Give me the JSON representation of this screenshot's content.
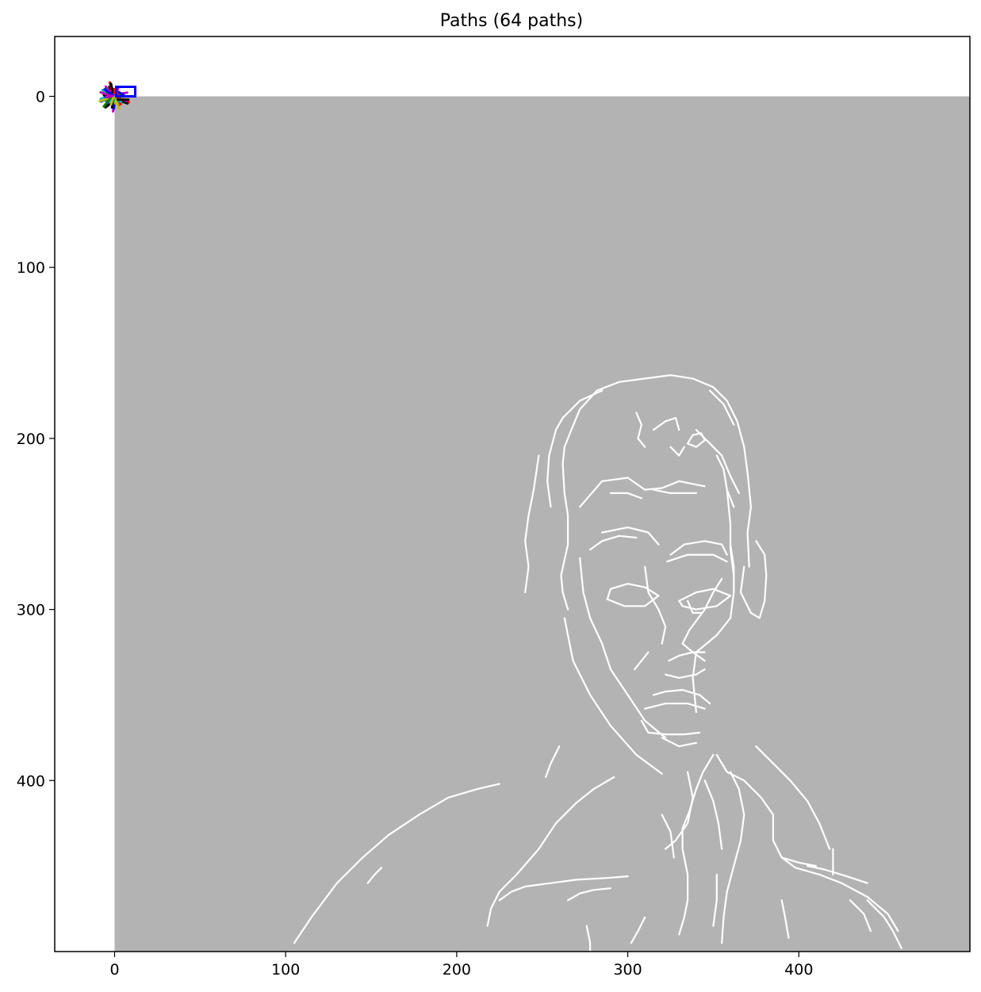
{
  "chart_data": {
    "type": "scatter",
    "title": "Paths (64 paths)",
    "xlabel": "",
    "ylabel": "",
    "xlim": [
      -35,
      500
    ],
    "ylim": [
      500,
      -35
    ],
    "x_ticks": [
      0,
      100,
      200,
      300,
      400
    ],
    "y_ticks": [
      0,
      100,
      200,
      300,
      400
    ],
    "grid": false,
    "image_extent": [
      0,
      500,
      0,
      500
    ],
    "background_color": "#b3b3b3",
    "edge_color": "#ffffff",
    "path_colors": [
      "#0000ff",
      "#00bfbf",
      "#008000",
      "#bfbf00",
      "#000000",
      "#bf00bf",
      "#ff0000"
    ],
    "path_count": 64,
    "path_cluster_center": [
      0,
      0
    ],
    "edge_polylines": [
      [
        [
          265,
          300
        ],
        [
          262,
          290
        ],
        [
          261,
          280
        ],
        [
          265,
          262
        ],
        [
          265,
          245
        ],
        [
          263,
          232
        ],
        [
          262,
          215
        ],
        [
          263,
          205
        ],
        [
          267,
          195
        ],
        [
          272,
          183
        ],
        [
          282,
          172
        ],
        [
          295,
          167
        ],
        [
          310,
          165
        ],
        [
          325,
          163
        ],
        [
          338,
          165
        ],
        [
          350,
          170
        ],
        [
          358,
          178
        ],
        [
          364,
          190
        ],
        [
          368,
          205
        ],
        [
          370,
          220
        ],
        [
          372,
          240
        ],
        [
          370,
          255
        ],
        [
          371,
          275
        ]
      ],
      [
        [
          255,
          240
        ],
        [
          253,
          225
        ],
        [
          254,
          210
        ],
        [
          258,
          195
        ],
        [
          262,
          188
        ]
      ],
      [
        [
          262,
          188
        ],
        [
          272,
          178
        ],
        [
          285,
          172
        ]
      ],
      [
        [
          348,
          172
        ],
        [
          356,
          180
        ],
        [
          362,
          192
        ]
      ],
      [
        [
          272,
          270
        ],
        [
          274,
          290
        ],
        [
          278,
          305
        ],
        [
          285,
          320
        ],
        [
          290,
          335
        ],
        [
          300,
          350
        ],
        [
          310,
          365
        ],
        [
          322,
          375
        ]
      ],
      [
        [
          263,
          305
        ],
        [
          268,
          330
        ],
        [
          278,
          350
        ],
        [
          290,
          368
        ],
        [
          305,
          385
        ],
        [
          320,
          396
        ]
      ],
      [
        [
          368,
          275
        ],
        [
          366,
          290
        ],
        [
          372,
          302
        ],
        [
          377,
          305
        ],
        [
          380,
          295
        ],
        [
          381,
          280
        ],
        [
          380,
          268
        ],
        [
          375,
          260
        ]
      ],
      [
        [
          358,
          230
        ],
        [
          360,
          250
        ],
        [
          360,
          265
        ],
        [
          362,
          280
        ]
      ],
      [
        [
          345,
          330
        ],
        [
          338,
          325
        ],
        [
          332,
          320
        ],
        [
          336,
          312
        ],
        [
          345,
          300
        ],
        [
          350,
          290
        ],
        [
          355,
          282
        ]
      ],
      [
        [
          360,
          262
        ],
        [
          362,
          275
        ],
        [
          362,
          290
        ],
        [
          360,
          305
        ],
        [
          352,
          315
        ],
        [
          340,
          325
        ],
        [
          338,
          340
        ],
        [
          340,
          360
        ]
      ],
      [
        [
          272,
          240
        ],
        [
          285,
          225
        ],
        [
          300,
          223
        ],
        [
          310,
          230
        ],
        [
          320,
          229
        ],
        [
          330,
          225
        ],
        [
          345,
          228
        ]
      ],
      [
        [
          290,
          232
        ],
        [
          300,
          232
        ],
        [
          308,
          235
        ]
      ],
      [
        [
          315,
          230
        ],
        [
          325,
          232
        ],
        [
          340,
          232
        ]
      ],
      [
        [
          285,
          255
        ],
        [
          300,
          252
        ],
        [
          312,
          255
        ],
        [
          318,
          262
        ]
      ],
      [
        [
          305,
          258
        ],
        [
          295,
          257
        ],
        [
          285,
          260
        ],
        [
          278,
          265
        ]
      ],
      [
        [
          325,
          268
        ],
        [
          333,
          262
        ],
        [
          345,
          260
        ],
        [
          355,
          262
        ],
        [
          358,
          268
        ]
      ],
      [
        [
          323,
          272
        ],
        [
          335,
          268
        ],
        [
          350,
          268
        ],
        [
          358,
          272
        ]
      ],
      [
        [
          290,
          288
        ],
        [
          300,
          285
        ],
        [
          310,
          287
        ],
        [
          318,
          292
        ],
        [
          310,
          298
        ],
        [
          298,
          298
        ],
        [
          288,
          294
        ],
        [
          290,
          288
        ]
      ],
      [
        [
          330,
          295
        ],
        [
          340,
          290
        ],
        [
          350,
          288
        ],
        [
          360,
          292
        ],
        [
          352,
          298
        ],
        [
          340,
          300
        ],
        [
          332,
          298
        ],
        [
          330,
          295
        ]
      ],
      [
        [
          335,
          295
        ],
        [
          338,
          302
        ],
        [
          343,
          302
        ]
      ],
      [
        [
          310,
          275
        ],
        [
          312,
          290
        ],
        [
          318,
          300
        ],
        [
          322,
          310
        ],
        [
          320,
          320
        ]
      ],
      [
        [
          312,
          325
        ],
        [
          308,
          330
        ],
        [
          304,
          335
        ]
      ],
      [
        [
          324,
          330
        ],
        [
          330,
          327
        ],
        [
          338,
          325
        ],
        [
          345,
          325
        ]
      ],
      [
        [
          322,
          338
        ],
        [
          330,
          340
        ],
        [
          340,
          338
        ],
        [
          345,
          335
        ]
      ],
      [
        [
          315,
          350
        ],
        [
          322,
          348
        ],
        [
          332,
          347
        ],
        [
          342,
          350
        ],
        [
          348,
          355
        ]
      ],
      [
        [
          310,
          358
        ],
        [
          322,
          355
        ],
        [
          335,
          355
        ],
        [
          345,
          358
        ]
      ],
      [
        [
          308,
          365
        ],
        [
          312,
          372
        ],
        [
          322,
          373
        ],
        [
          333,
          373
        ],
        [
          342,
          372
        ]
      ],
      [
        [
          320,
          375
        ],
        [
          330,
          380
        ],
        [
          340,
          378
        ]
      ],
      [
        [
          305,
          185
        ],
        [
          308,
          192
        ],
        [
          306,
          200
        ],
        [
          310,
          205
        ]
      ],
      [
        [
          315,
          195
        ],
        [
          322,
          190
        ],
        [
          328,
          188
        ],
        [
          330,
          195
        ]
      ],
      [
        [
          335,
          203
        ],
        [
          340,
          205
        ],
        [
          345,
          201
        ],
        [
          343,
          197
        ],
        [
          338,
          198
        ],
        [
          335,
          203
        ]
      ],
      [
        [
          325,
          205
        ],
        [
          330,
          210
        ],
        [
          333,
          205
        ]
      ],
      [
        [
          340,
          195
        ],
        [
          345,
          200
        ],
        [
          350,
          205
        ],
        [
          355,
          210
        ],
        [
          360,
          222
        ],
        [
          365,
          232
        ]
      ],
      [
        [
          352,
          210
        ],
        [
          356,
          218
        ],
        [
          358,
          230
        ],
        [
          362,
          240
        ]
      ],
      [
        [
          240,
          290
        ],
        [
          242,
          275
        ],
        [
          240,
          260
        ],
        [
          242,
          245
        ],
        [
          245,
          230
        ],
        [
          248,
          210
        ]
      ],
      [
        [
          218,
          485
        ],
        [
          220,
          475
        ],
        [
          225,
          465
        ],
        [
          235,
          455
        ],
        [
          248,
          440
        ],
        [
          258,
          425
        ],
        [
          270,
          413
        ],
        [
          280,
          405
        ],
        [
          292,
          398
        ]
      ],
      [
        [
          330,
          490
        ],
        [
          333,
          480
        ],
        [
          335,
          470
        ],
        [
          335,
          455
        ],
        [
          332,
          440
        ],
        [
          332,
          428
        ],
        [
          336,
          418
        ],
        [
          340,
          405
        ]
      ],
      [
        [
          340,
          405
        ],
        [
          344,
          395
        ],
        [
          350,
          385
        ]
      ],
      [
        [
          352,
          385
        ],
        [
          358,
          395
        ],
        [
          368,
          400
        ],
        [
          378,
          410
        ],
        [
          385,
          420
        ],
        [
          385,
          435
        ]
      ],
      [
        [
          385,
          435
        ],
        [
          390,
          445
        ],
        [
          398,
          451
        ],
        [
          412,
          455
        ],
        [
          425,
          460
        ],
        [
          440,
          468
        ],
        [
          452,
          478
        ],
        [
          458,
          488
        ]
      ],
      [
        [
          405,
          450
        ],
        [
          415,
          452
        ],
        [
          428,
          456
        ],
        [
          440,
          460
        ]
      ],
      [
        [
          390,
          445
        ],
        [
          400,
          448
        ],
        [
          410,
          450
        ]
      ],
      [
        [
          375,
          380
        ],
        [
          385,
          390
        ],
        [
          395,
          400
        ],
        [
          405,
          412
        ],
        [
          412,
          425
        ],
        [
          418,
          440
        ]
      ],
      [
        [
          420,
          440
        ],
        [
          420,
          455
        ]
      ],
      [
        [
          360,
          395
        ],
        [
          365,
          405
        ],
        [
          368,
          420
        ],
        [
          366,
          435
        ],
        [
          362,
          450
        ],
        [
          358,
          465
        ],
        [
          356,
          480
        ],
        [
          355,
          495
        ]
      ],
      [
        [
          345,
          400
        ],
        [
          350,
          412
        ],
        [
          353,
          425
        ],
        [
          355,
          440
        ]
      ],
      [
        [
          335,
          395
        ],
        [
          338,
          410
        ],
        [
          335,
          425
        ],
        [
          328,
          435
        ],
        [
          322,
          440
        ]
      ],
      [
        [
          320,
          420
        ],
        [
          325,
          430
        ],
        [
          327,
          445
        ]
      ],
      [
        [
          225,
          470
        ],
        [
          232,
          465
        ],
        [
          240,
          462
        ],
        [
          255,
          460
        ],
        [
          270,
          458
        ],
        [
          288,
          457
        ],
        [
          300,
          456
        ]
      ],
      [
        [
          265,
          470
        ],
        [
          272,
          466
        ],
        [
          280,
          464
        ],
        [
          290,
          463
        ]
      ],
      [
        [
          105,
          495
        ],
        [
          115,
          480
        ],
        [
          130,
          460
        ],
        [
          145,
          445
        ],
        [
          160,
          432
        ],
        [
          178,
          420
        ],
        [
          195,
          410
        ],
        [
          212,
          405
        ],
        [
          225,
          402
        ]
      ],
      [
        [
          148,
          460
        ],
        [
          152,
          455
        ],
        [
          156,
          451
        ]
      ],
      [
        [
          440,
          470
        ],
        [
          450,
          480
        ],
        [
          455,
          488
        ],
        [
          460,
          498
        ]
      ],
      [
        [
          430,
          470
        ],
        [
          438,
          478
        ],
        [
          442,
          488
        ]
      ],
      [
        [
          260,
          380
        ],
        [
          255,
          390
        ],
        [
          252,
          398
        ]
      ],
      [
        [
          390,
          470
        ],
        [
          392,
          480
        ],
        [
          394,
          492
        ]
      ],
      [
        [
          352,
          455
        ],
        [
          352,
          470
        ],
        [
          350,
          485
        ]
      ],
      [
        [
          276,
          485
        ],
        [
          278,
          495
        ],
        [
          278,
          500
        ]
      ],
      [
        [
          302,
          495
        ],
        [
          306,
          488
        ],
        [
          310,
          480
        ]
      ]
    ]
  }
}
